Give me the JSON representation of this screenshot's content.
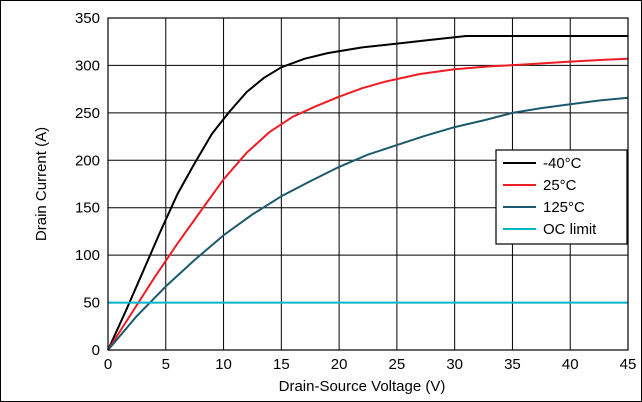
{
  "chart_data": {
    "type": "line",
    "title": "",
    "xlabel": "Drain-Source Voltage (V)",
    "ylabel": "Drain Current (A)",
    "xlim": [
      0,
      45
    ],
    "ylim": [
      0,
      350
    ],
    "xticks": [
      0,
      5,
      10,
      15,
      20,
      25,
      30,
      35,
      40,
      45
    ],
    "yticks": [
      0,
      50,
      100,
      150,
      200,
      250,
      300,
      350
    ],
    "xtick_labels": [
      "0",
      "5",
      "10",
      "15",
      "20",
      "25",
      "30",
      "35",
      "40",
      "45"
    ],
    "ytick_labels": [
      "0",
      "50",
      "100",
      "150",
      "200",
      "250",
      "300",
      "350"
    ],
    "grid": true,
    "legend_position": "right",
    "series": [
      {
        "name": "-40°C",
        "color": "#000000",
        "x": [
          0,
          1.5,
          3,
          4.5,
          6,
          7.5,
          9,
          10.5,
          12,
          13.5,
          15,
          17,
          19,
          22,
          25,
          28,
          31,
          35,
          40,
          45
        ],
        "y": [
          0,
          40,
          82,
          124,
          164,
          197,
          228,
          251,
          272,
          287,
          298,
          307,
          313,
          319,
          323,
          327,
          331,
          331,
          331,
          331
        ]
      },
      {
        "name": "25°C",
        "color": "#ee1c25",
        "x": [
          0,
          2,
          4,
          6,
          8,
          10,
          12,
          14,
          16,
          18,
          20,
          22,
          24,
          27,
          30,
          33,
          36,
          40,
          43,
          45
        ],
        "y": [
          0,
          38,
          76,
          112,
          146,
          180,
          208,
          230,
          246,
          257,
          267,
          276,
          283,
          291,
          296,
          299,
          301,
          304,
          306,
          307
        ]
      },
      {
        "name": "125°C",
        "color": "#1b5a6e",
        "x": [
          0,
          2.5,
          5,
          7.5,
          10,
          12.5,
          15,
          17.5,
          20,
          22.5,
          25,
          27.5,
          30,
          32.5,
          35,
          37.5,
          40,
          42.5,
          45
        ],
        "y": [
          0,
          36,
          67,
          95,
          121,
          143,
          162,
          178,
          193,
          206,
          216,
          226,
          235,
          242,
          250,
          255,
          259,
          263,
          266
        ]
      },
      {
        "name": "OC limit",
        "color": "#00b4cc",
        "x": [
          0,
          45
        ],
        "y": [
          50,
          50
        ]
      }
    ]
  }
}
